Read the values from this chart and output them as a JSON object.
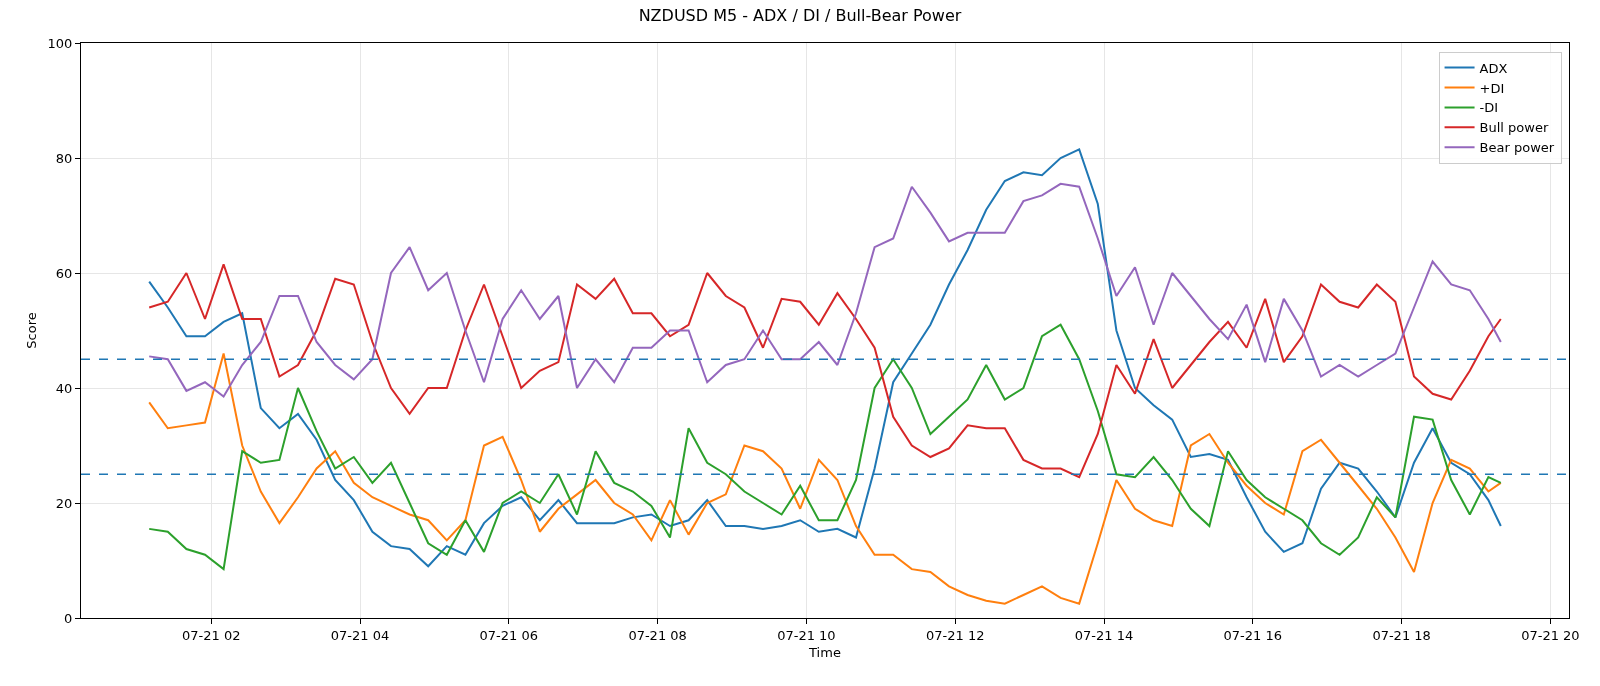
{
  "chart_data": {
    "type": "line",
    "title": "NZDUSD M5 - ADX / DI / Bull-Bear Power",
    "xlabel": "Time",
    "ylabel": "Score",
    "x": [
      "--07-21T01:10",
      "--07-21T01:25",
      "--07-21T01:40",
      "--07-21T01:55",
      "--07-21T02:10",
      "--07-21T02:25",
      "--07-21T02:40",
      "--07-21T02:55",
      "--07-21T03:10",
      "--07-21T03:25",
      "--07-21T03:40",
      "--07-21T03:55",
      "--07-21T04:10",
      "--07-21T04:25",
      "--07-21T04:40",
      "--07-21T04:55",
      "--07-21T05:10",
      "--07-21T05:25",
      "--07-21T05:40",
      "--07-21T05:55",
      "--07-21T06:10",
      "--07-21T06:25",
      "--07-21T06:40",
      "--07-21T06:55",
      "--07-21T07:10",
      "--07-21T07:25",
      "--07-21T07:40",
      "--07-21T07:55",
      "--07-21T08:10",
      "--07-21T08:25",
      "--07-21T08:40",
      "--07-21T08:55",
      "--07-21T09:10",
      "--07-21T09:25",
      "--07-21T09:40",
      "--07-21T09:55",
      "--07-21T10:10",
      "--07-21T10:25",
      "--07-21T10:40",
      "--07-21T10:55",
      "--07-21T11:10",
      "--07-21T11:25",
      "--07-21T11:40",
      "--07-21T11:55",
      "--07-21T12:10",
      "--07-21T12:25",
      "--07-21T12:40",
      "--07-21T12:55",
      "--07-21T13:10",
      "--07-21T13:25",
      "--07-21T13:40",
      "--07-21T13:55",
      "--07-21T14:10",
      "--07-21T14:25",
      "--07-21T14:40",
      "--07-21T14:55",
      "--07-21T15:10",
      "--07-21T15:25",
      "--07-21T15:40",
      "--07-21T15:55",
      "--07-21T16:10",
      "--07-21T16:25",
      "--07-21T16:40",
      "--07-21T16:55",
      "--07-21T17:10",
      "--07-21T17:25",
      "--07-21T17:40",
      "--07-21T17:55",
      "--07-21T18:10",
      "--07-21T18:25",
      "--07-21T18:40",
      "--07-21T18:55",
      "--07-21T19:10",
      "--07-21T19:20"
    ],
    "series": [
      {
        "name": "ADX",
        "color": "#1f77b4",
        "values": [
          58.5,
          54,
          49,
          49,
          51.5,
          53,
          36.5,
          33,
          35.5,
          31,
          24,
          20.5,
          15,
          12.5,
          12,
          9,
          12.5,
          11,
          16.5,
          19.5,
          21,
          17,
          20.5,
          16.5,
          16.5,
          16.5,
          17.5,
          18,
          16,
          17,
          20.5,
          16,
          16,
          15.5,
          16,
          17,
          15,
          15.5,
          14,
          26,
          41,
          46,
          51,
          58,
          64,
          71,
          76,
          77.5,
          77,
          80,
          81.5,
          72,
          50,
          40,
          37,
          34.5,
          28,
          28.5,
          27.5,
          21,
          15,
          11.5,
          13,
          22.5,
          27,
          26,
          22,
          17.5,
          27,
          33,
          27,
          25,
          20.5,
          16
        ]
      },
      {
        "name": "+DI",
        "color": "#ff7f0e",
        "values": [
          37.5,
          33,
          33.5,
          34,
          46,
          30,
          22,
          16.5,
          21,
          26,
          29,
          23.5,
          21,
          19.5,
          18,
          17,
          13.5,
          17,
          30,
          31.5,
          24,
          15,
          19,
          21.5,
          24,
          20,
          18,
          13.5,
          20.5,
          14.5,
          20,
          21.5,
          30,
          29,
          26,
          19,
          27.5,
          24,
          16,
          11,
          11,
          8.5,
          8,
          5.5,
          4,
          3,
          2.5,
          4,
          5.5,
          3.5,
          2.5,
          13,
          24,
          19,
          17,
          16,
          30,
          32,
          27,
          23,
          20,
          18,
          29,
          31,
          27,
          23,
          19,
          14,
          8,
          20,
          27.5,
          26,
          22,
          23.5
        ]
      },
      {
        "name": "-DI",
        "color": "#2ca02c",
        "values": [
          15.5,
          15,
          12,
          11,
          8.5,
          29,
          27,
          27.5,
          40,
          32.5,
          26,
          28,
          23.5,
          27,
          20,
          13,
          11,
          17,
          11.5,
          20,
          22,
          20,
          25,
          18,
          29,
          23.5,
          22,
          19.5,
          14,
          33,
          27,
          25,
          22,
          20,
          18,
          23,
          17,
          17,
          24,
          40,
          45,
          40,
          32,
          35,
          38,
          44,
          38,
          40,
          49,
          51,
          45,
          36,
          25,
          24.5,
          28,
          24,
          19,
          16,
          29,
          24,
          21,
          19,
          17,
          13,
          11,
          14,
          21,
          17.5,
          35,
          34.5,
          24,
          18,
          24.5,
          23.5
        ]
      },
      {
        "name": "Bull power",
        "color": "#d62728",
        "values": [
          54,
          55,
          60,
          52,
          61.5,
          52,
          52,
          42,
          44,
          50,
          59,
          58,
          48,
          40,
          35.5,
          40,
          40,
          50,
          58,
          49,
          40,
          43,
          44.5,
          58,
          55.5,
          59,
          53,
          53,
          49,
          51,
          60,
          56,
          54,
          47,
          55.5,
          55,
          51,
          56.5,
          52,
          47,
          35,
          30,
          28,
          29.5,
          33.5,
          33,
          33,
          27.5,
          26,
          26,
          24.5,
          32,
          44,
          39,
          48.5,
          40,
          44,
          48,
          51.5,
          47,
          55.5,
          44.5,
          49,
          58,
          55,
          54,
          58,
          55,
          42,
          39,
          38,
          43,
          49,
          52
        ]
      },
      {
        "name": "Bear power",
        "color": "#9467bd",
        "values": [
          45.5,
          45,
          39.5,
          41,
          38.5,
          44,
          48,
          56,
          56,
          48,
          44,
          41.5,
          45,
          60,
          64.5,
          57,
          60,
          50,
          41,
          52,
          57,
          52,
          56,
          40,
          45,
          41,
          47,
          47,
          50,
          50,
          41,
          44,
          45,
          50,
          45,
          45,
          48,
          44,
          53,
          64.5,
          66,
          75,
          70.5,
          65.5,
          67,
          67,
          67,
          72.5,
          73.5,
          75.5,
          75,
          66,
          56,
          61,
          51,
          60,
          56,
          52,
          48.5,
          54.5,
          44.5,
          55.5,
          50,
          42,
          44,
          42,
          44,
          46,
          54,
          62,
          58,
          57,
          52,
          48
        ]
      }
    ],
    "xlim": [
      "--07-21T00:15",
      "--07-21T20:15"
    ],
    "xticks": [
      {
        "value": "--07-21T02:00",
        "label": "07-21 02"
      },
      {
        "value": "--07-21T04:00",
        "label": "07-21 04"
      },
      {
        "value": "--07-21T06:00",
        "label": "07-21 06"
      },
      {
        "value": "--07-21T08:00",
        "label": "07-21 08"
      },
      {
        "value": "--07-21T10:00",
        "label": "07-21 10"
      },
      {
        "value": "--07-21T12:00",
        "label": "07-21 12"
      },
      {
        "value": "--07-21T14:00",
        "label": "07-21 14"
      },
      {
        "value": "--07-21T16:00",
        "label": "07-21 16"
      },
      {
        "value": "--07-21T18:00",
        "label": "07-21 18"
      },
      {
        "value": "--07-21T20:00",
        "label": "07-21 20"
      }
    ],
    "ylim": [
      0,
      100
    ],
    "yticks": [
      0,
      20,
      40,
      60,
      80,
      100
    ],
    "ref_lines": [
      {
        "axis": "y",
        "value": 45,
        "color": "#1f77b4",
        "line_style": "dashed"
      },
      {
        "axis": "y",
        "value": 25,
        "color": "#1f77b4",
        "line_style": "dashed"
      }
    ],
    "grid": true,
    "legend": "top right",
    "line_style": "solid",
    "marker": "none"
  }
}
